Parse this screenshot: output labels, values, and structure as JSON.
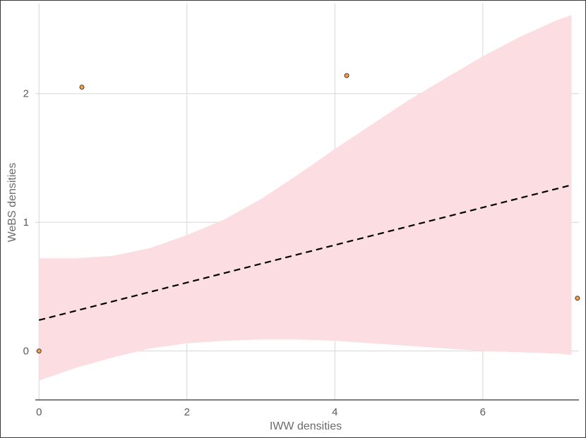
{
  "chart_data": {
    "type": "scatter",
    "xlabel": "IWW densities",
    "ylabel": "WeBS densities",
    "xlim": [
      -0.05,
      7.3
    ],
    "ylim": [
      -0.38,
      2.7
    ],
    "x_ticks": [
      0,
      2,
      4,
      6
    ],
    "y_ticks": [
      0,
      1,
      2
    ],
    "grid": true,
    "points": [
      {
        "x": 0.0,
        "y": 0.0
      },
      {
        "x": 0.58,
        "y": 2.05
      },
      {
        "x": 4.16,
        "y": 2.14
      },
      {
        "x": 7.28,
        "y": 0.41
      }
    ],
    "fit_line": {
      "style": "dashed",
      "x": [
        0.0,
        7.2
      ],
      "y": [
        0.24,
        1.29
      ]
    },
    "confidence_band": {
      "x": [
        0.0,
        0.5,
        1.0,
        1.5,
        2.0,
        2.5,
        3.0,
        3.5,
        4.0,
        4.5,
        5.0,
        5.5,
        6.0,
        6.5,
        7.0,
        7.2
      ],
      "lower": [
        -0.23,
        -0.13,
        -0.05,
        0.02,
        0.06,
        0.08,
        0.09,
        0.09,
        0.08,
        0.06,
        0.04,
        0.02,
        0.0,
        -0.01,
        -0.02,
        -0.03
      ],
      "upper": [
        0.72,
        0.72,
        0.74,
        0.8,
        0.9,
        1.02,
        1.18,
        1.37,
        1.57,
        1.76,
        1.95,
        2.12,
        2.29,
        2.44,
        2.57,
        2.61
      ]
    },
    "colors": {
      "point_fill": "#f0a04a",
      "point_stroke": "#3b2a1a",
      "band": "#fcdde1",
      "line": "#000000",
      "grid": "#d6d6d6",
      "axis": "#333333"
    }
  }
}
